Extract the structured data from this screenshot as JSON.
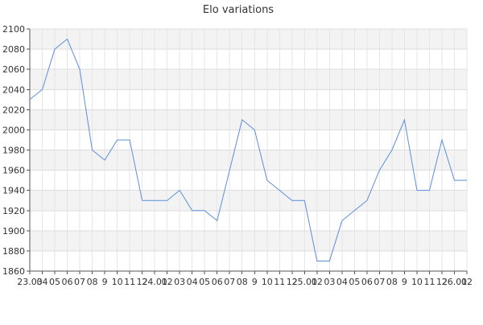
{
  "chart_data": {
    "type": "line",
    "title": "Elo variations",
    "xlabel": "",
    "ylabel": "",
    "ylim": [
      1860,
      2100
    ],
    "yticks": [
      1860,
      1880,
      1900,
      1920,
      1940,
      1960,
      1980,
      2000,
      2020,
      2040,
      2060,
      2080,
      2100
    ],
    "grid": true,
    "x_tick_labels": [
      "23.03",
      "04",
      "05",
      "06",
      "07",
      "08",
      "9",
      "10",
      "11",
      "12",
      "24.01",
      "02",
      "03",
      "04",
      "05",
      "06",
      "07",
      "08",
      "9",
      "10",
      "11",
      "12",
      "25.01",
      "02",
      "03",
      "04",
      "05",
      "06",
      "07",
      "08",
      "9",
      "10",
      "11",
      "12",
      "26.01",
      "02"
    ],
    "series": [
      {
        "values": [
          2030,
          2040,
          2080,
          2090,
          2060,
          1980,
          1970,
          1990,
          1990,
          1930,
          1930,
          1930,
          1940,
          1920,
          1920,
          1910,
          1960,
          2010,
          2000,
          1950,
          1940,
          1930,
          1930,
          1870,
          1870,
          1910,
          1920,
          1930,
          1960,
          1980,
          2010,
          1940,
          1940,
          1990,
          1950,
          1950
        ]
      }
    ]
  }
}
